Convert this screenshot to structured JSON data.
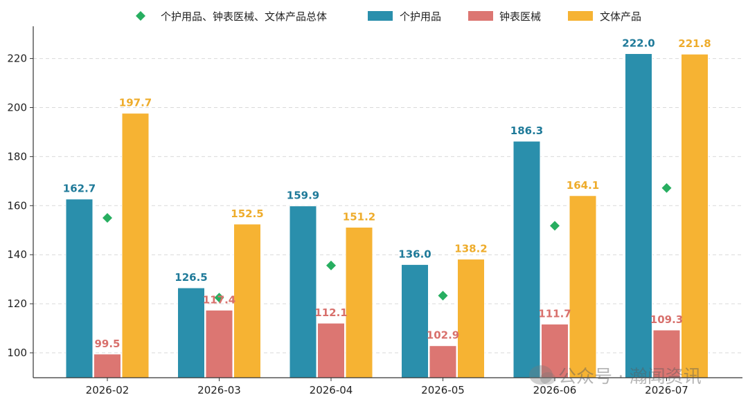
{
  "chart_data": {
    "type": "bar",
    "categories": [
      "2026-02",
      "2026-03",
      "2026-04",
      "2026-05",
      "2026-06",
      "2026-07"
    ],
    "series": [
      {
        "name": "个护用品",
        "values": [
          162.7,
          126.5,
          159.9,
          136.0,
          186.3,
          222.0
        ],
        "labels": [
          "162.7",
          "126.5",
          "159.9",
          "136.0",
          "186.3",
          "222.0"
        ],
        "color": "#2a8fac",
        "label_color": "#1f7a99"
      },
      {
        "name": "钟表医械",
        "values": [
          99.5,
          117.4,
          112.1,
          102.9,
          111.7,
          109.3
        ],
        "labels": [
          "99.5",
          "117.4",
          "112.1",
          "102.9",
          "111.7",
          "109.3"
        ],
        "color": "#dc7672",
        "label_color": "#d8706c"
      },
      {
        "name": "文体产品",
        "values": [
          197.7,
          152.5,
          151.2,
          138.2,
          164.1,
          221.8
        ],
        "labels": [
          "197.7",
          "152.5",
          "151.2",
          "138.2",
          "164.1",
          "221.8"
        ],
        "color": "#f6b333",
        "label_color": "#eeac2b"
      }
    ],
    "total": {
      "name": "个护用品、钟表医械、文体产品总体",
      "values": [
        155.0,
        122.5,
        135.6,
        123.3,
        151.8,
        167.2
      ],
      "color": "#27ae60",
      "marker": "diamond"
    },
    "ylim": [
      90,
      233
    ],
    "yticks": [
      100,
      120,
      140,
      160,
      180,
      200,
      220
    ],
    "grid": true,
    "legend_position": "top-center",
    "title": "",
    "xlabel": "",
    "ylabel": ""
  },
  "watermark": {
    "text": "公众号 · 瀚闻资讯",
    "icon": "wechat-icon"
  }
}
